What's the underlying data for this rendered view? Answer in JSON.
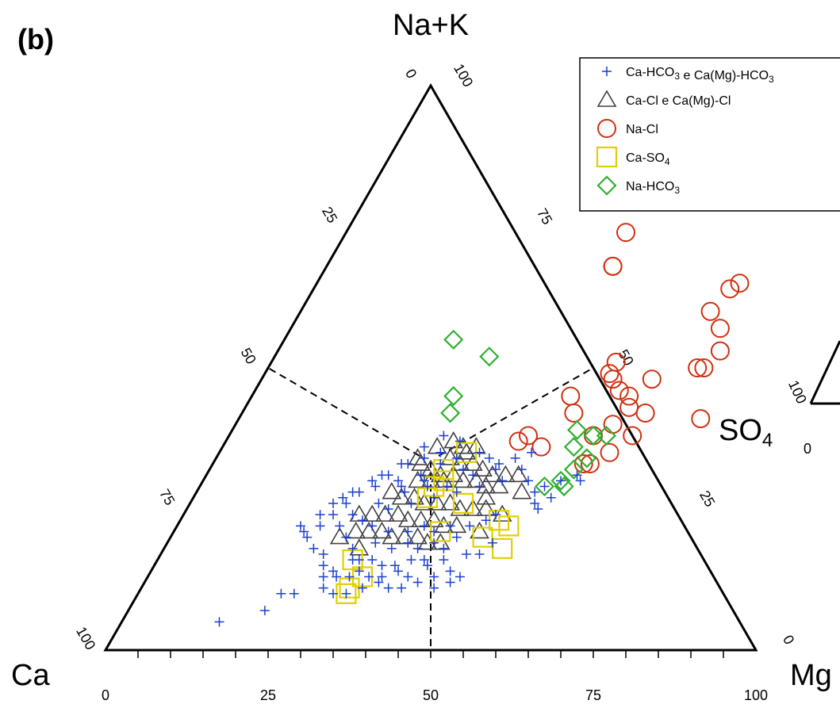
{
  "chart_data": {
    "type": "scatter",
    "subtype": "ternary",
    "panel_label": "(b)",
    "vertices": {
      "top": "Na+K",
      "left": "Ca",
      "right": "Mg"
    },
    "second_diagram_label": "SO4",
    "tick_labels": {
      "bottom": [
        "0",
        "25",
        "50",
        "75",
        "100"
      ],
      "left": [
        "0",
        "25",
        "50",
        "75",
        "100"
      ],
      "right": [
        "100",
        "75",
        "50",
        "25",
        "0"
      ],
      "second_diagram": [
        "100",
        "0"
      ]
    },
    "legend": [
      {
        "key": "cahco3",
        "text": "Ca-HCO3 e Ca(Mg)-HCO3",
        "base": "Ca-HCO",
        "sub1": "3",
        "mid": " e Ca(Mg)-HCO",
        "sub2": "3",
        "marker": "plus",
        "color": "#1a3fd0"
      },
      {
        "key": "cacl",
        "text": "Ca-Cl e Ca(Mg)-Cl",
        "base": "Ca-Cl e Ca(Mg)-Cl",
        "sub1": "",
        "mid": "",
        "sub2": "",
        "marker": "triangle",
        "color": "#404040"
      },
      {
        "key": "nacl",
        "text": "Na-Cl",
        "base": "Na-Cl",
        "sub1": "",
        "mid": "",
        "sub2": "",
        "marker": "circle",
        "color": "#d03010"
      },
      {
        "key": "caso4",
        "text": "Ca-SO4",
        "base": "Ca-SO",
        "sub1": "4",
        "mid": "",
        "sub2": "",
        "marker": "square",
        "color": "#e0d000"
      },
      {
        "key": "nahco3",
        "text": "Na-HCO3",
        "base": "Na-HCO",
        "sub1": "3",
        "mid": "",
        "sub2": "",
        "marker": "diamond",
        "color": "#30b030"
      }
    ],
    "series": [
      {
        "key": "cacl",
        "points": [
          [
            33,
            36
          ],
          [
            35,
            37
          ],
          [
            37,
            36
          ],
          [
            38,
            35
          ],
          [
            36,
            34
          ],
          [
            38,
            33
          ],
          [
            40,
            33
          ],
          [
            42,
            32
          ],
          [
            44,
            31
          ],
          [
            46,
            31
          ],
          [
            48,
            31
          ],
          [
            32,
            33
          ],
          [
            34,
            32
          ],
          [
            36,
            31
          ],
          [
            38,
            31
          ],
          [
            40,
            30
          ],
          [
            42,
            30
          ],
          [
            44,
            29
          ],
          [
            46,
            29
          ],
          [
            33,
            30
          ],
          [
            35,
            30
          ],
          [
            37,
            30
          ],
          [
            30,
            28
          ],
          [
            32,
            27
          ],
          [
            34,
            27
          ],
          [
            36,
            26
          ],
          [
            38,
            26
          ],
          [
            40,
            26
          ],
          [
            42,
            25
          ],
          [
            44,
            25
          ],
          [
            46,
            25
          ],
          [
            27,
            24
          ],
          [
            29,
            24
          ],
          [
            31,
            24
          ],
          [
            33,
            24
          ],
          [
            35,
            23
          ],
          [
            37,
            23
          ],
          [
            39,
            23
          ],
          [
            41,
            22
          ],
          [
            43,
            22
          ],
          [
            28,
            21
          ],
          [
            30,
            21
          ],
          [
            32,
            21
          ],
          [
            34,
            20
          ],
          [
            36,
            20
          ],
          [
            38,
            20
          ],
          [
            40,
            19
          ],
          [
            42,
            19
          ],
          [
            49,
            24
          ],
          [
            50,
            28
          ],
          [
            31,
            34
          ],
          [
            39,
            36
          ],
          [
            45,
            27
          ],
          [
            47,
            21
          ],
          [
            30,
            18
          ],
          [
            26,
            20
          ]
        ]
      },
      {
        "key": "nacl",
        "points": [
          [
            43,
            74
          ],
          [
            44,
            68
          ],
          [
            44,
            68
          ],
          [
            64,
            64
          ],
          [
            65,
            65
          ],
          [
            63,
            60
          ],
          [
            66,
            57
          ],
          [
            68,
            53
          ],
          [
            66,
            50
          ],
          [
            67,
            50
          ],
          [
            60,
            48
          ],
          [
            53,
            51
          ],
          [
            53,
            49
          ],
          [
            54,
            48
          ],
          [
            56,
            46
          ],
          [
            49,
            45
          ],
          [
            58,
            45
          ],
          [
            51,
            42
          ],
          [
            59,
            43
          ],
          [
            62,
            42
          ],
          [
            58,
            40
          ],
          [
            71,
            41
          ],
          [
            46,
            38
          ],
          [
            45,
            37
          ],
          [
            49,
            36
          ],
          [
            56,
            38
          ],
          [
            62,
            38
          ],
          [
            60,
            35
          ],
          [
            57,
            33
          ],
          [
            58,
            33
          ]
        ]
      },
      {
        "key": "caso4",
        "points": [
          [
            38,
            35
          ],
          [
            36,
            32
          ],
          [
            37,
            30
          ],
          [
            36,
            29
          ],
          [
            36,
            27
          ],
          [
            42,
            26
          ],
          [
            41,
            21
          ],
          [
            49,
            23
          ],
          [
            51,
            22
          ],
          [
            48,
            20
          ],
          [
            52,
            18
          ],
          [
            30,
            16
          ],
          [
            33,
            13
          ],
          [
            32,
            11
          ],
          [
            32,
            10
          ]
        ]
      },
      {
        "key": "nahco3",
        "points": [
          [
            26,
            55
          ],
          [
            33,
            52
          ],
          [
            31,
            45
          ],
          [
            32,
            42
          ],
          [
            53,
            39
          ],
          [
            56,
            38
          ],
          [
            58,
            38
          ],
          [
            54,
            36
          ],
          [
            57,
            34
          ],
          [
            56,
            32
          ],
          [
            55,
            30
          ],
          [
            53,
            29
          ],
          [
            56,
            29
          ]
        ]
      },
      {
        "key": "cahco3",
        "points": [
          [
            15,
            5
          ],
          [
            21,
            7
          ],
          [
            22,
            10
          ],
          [
            24,
            10
          ],
          [
            27,
            13
          ],
          [
            28,
            14
          ],
          [
            29,
            13
          ],
          [
            30,
            16
          ],
          [
            31,
            13
          ],
          [
            31,
            16
          ],
          [
            32,
            14
          ],
          [
            33,
            16
          ],
          [
            34,
            13
          ],
          [
            35,
            15
          ],
          [
            36,
            13
          ],
          [
            37,
            15
          ],
          [
            38,
            14
          ],
          [
            39,
            16
          ],
          [
            40,
            13
          ],
          [
            41,
            16
          ],
          [
            42,
            15
          ],
          [
            43,
            18
          ],
          [
            44,
            16
          ],
          [
            46,
            14
          ],
          [
            47,
            17
          ],
          [
            49,
            17
          ],
          [
            50,
            19
          ],
          [
            27,
            20
          ],
          [
            29,
            18
          ],
          [
            30,
            22
          ],
          [
            32,
            19
          ],
          [
            33,
            21
          ],
          [
            35,
            18
          ],
          [
            36,
            21
          ],
          [
            37,
            19
          ],
          [
            38,
            22
          ],
          [
            39,
            18
          ],
          [
            40,
            21
          ],
          [
            41,
            19
          ],
          [
            42,
            22
          ],
          [
            44,
            20
          ],
          [
            45,
            22
          ],
          [
            47,
            23
          ],
          [
            48,
            24
          ],
          [
            25,
            22
          ],
          [
            26,
            24
          ],
          [
            28,
            23
          ],
          [
            29,
            26
          ],
          [
            31,
            25
          ],
          [
            32,
            28
          ],
          [
            34,
            26
          ],
          [
            35,
            29
          ],
          [
            37,
            27
          ],
          [
            38,
            29
          ],
          [
            40,
            28
          ],
          [
            41,
            31
          ],
          [
            43,
            29
          ],
          [
            44,
            32
          ],
          [
            46,
            30
          ],
          [
            48,
            32
          ],
          [
            50,
            30
          ],
          [
            52,
            28
          ],
          [
            53,
            29
          ],
          [
            55,
            30
          ],
          [
            57,
            31
          ],
          [
            58,
            30
          ],
          [
            54,
            25
          ],
          [
            53,
            26
          ],
          [
            55,
            27
          ],
          [
            24,
            26
          ],
          [
            23,
            24
          ],
          [
            22,
            22
          ],
          [
            20,
            21
          ],
          [
            19,
            22
          ],
          [
            21,
            24
          ],
          [
            23,
            27
          ],
          [
            25,
            28
          ],
          [
            27,
            29
          ],
          [
            28,
            31
          ],
          [
            30,
            33
          ],
          [
            32,
            34
          ],
          [
            34,
            35
          ],
          [
            36,
            37
          ],
          [
            33,
            38
          ],
          [
            31,
            36
          ],
          [
            29,
            33
          ],
          [
            27,
            31
          ],
          [
            26,
            30
          ],
          [
            24,
            28
          ],
          [
            22,
            26
          ],
          [
            21,
            20
          ],
          [
            23,
            18
          ],
          [
            25,
            17
          ],
          [
            26,
            15
          ],
          [
            28,
            11
          ],
          [
            30,
            10
          ],
          [
            32,
            10
          ],
          [
            34,
            11
          ],
          [
            36,
            12
          ],
          [
            38,
            11
          ],
          [
            40,
            11
          ],
          [
            42,
            12
          ],
          [
            44,
            13
          ],
          [
            45,
            11
          ],
          [
            47,
            12
          ],
          [
            48,
            13
          ],
          [
            40,
            35
          ],
          [
            42,
            34
          ],
          [
            44,
            33
          ],
          [
            46,
            34
          ],
          [
            48,
            35
          ],
          [
            35,
            33
          ],
          [
            37,
            34
          ],
          [
            39,
            32
          ],
          [
            30,
            30
          ],
          [
            31,
            29
          ],
          [
            33,
            31
          ],
          [
            34,
            30
          ]
        ]
      }
    ]
  }
}
